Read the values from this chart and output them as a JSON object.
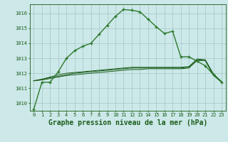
{
  "title": "Graphe pression niveau de la mer (hPa)",
  "background_color": "#cce8e8",
  "grid_color": "#aacccc",
  "line_color_main": "#1a5c1a",
  "line_color_secondary": "#2d7a2d",
  "x_values": [
    0,
    1,
    2,
    3,
    4,
    5,
    6,
    7,
    8,
    9,
    10,
    11,
    12,
    13,
    14,
    15,
    16,
    17,
    18,
    19,
    20,
    21,
    22,
    23
  ],
  "series1": [
    1009.6,
    1011.4,
    1011.4,
    1012.1,
    1013.0,
    1013.5,
    1013.8,
    1014.0,
    1014.6,
    1015.2,
    1015.8,
    1016.25,
    1016.2,
    1016.1,
    1015.6,
    1015.1,
    1014.65,
    1014.8,
    1013.1,
    1013.1,
    1012.8,
    1012.5,
    1011.9,
    1011.4
  ],
  "series2": [
    1011.5,
    1011.55,
    1011.65,
    1011.75,
    1011.85,
    1011.9,
    1011.95,
    1012.0,
    1012.05,
    1012.1,
    1012.15,
    1012.2,
    1012.25,
    1012.25,
    1012.3,
    1012.3,
    1012.3,
    1012.3,
    1012.3,
    1012.35,
    1012.85,
    1012.85,
    1011.85,
    1011.4
  ],
  "series3": [
    1011.5,
    1011.6,
    1011.7,
    1011.8,
    1011.9,
    1012.0,
    1012.05,
    1012.1,
    1012.15,
    1012.2,
    1012.25,
    1012.3,
    1012.35,
    1012.35,
    1012.35,
    1012.35,
    1012.35,
    1012.35,
    1012.35,
    1012.4,
    1012.9,
    1012.85,
    1011.9,
    1011.4
  ],
  "series4": [
    1011.5,
    1011.6,
    1011.75,
    1011.9,
    1012.0,
    1012.05,
    1012.1,
    1012.15,
    1012.2,
    1012.25,
    1012.3,
    1012.35,
    1012.4,
    1012.4,
    1012.4,
    1012.4,
    1012.4,
    1012.4,
    1012.4,
    1012.45,
    1012.95,
    1012.9,
    1011.95,
    1011.45
  ],
  "ylim": [
    1009.5,
    1016.6
  ],
  "yticks": [
    1010,
    1011,
    1012,
    1013,
    1014,
    1015,
    1016
  ],
  "title_fontsize": 7,
  "tick_fontsize": 5
}
